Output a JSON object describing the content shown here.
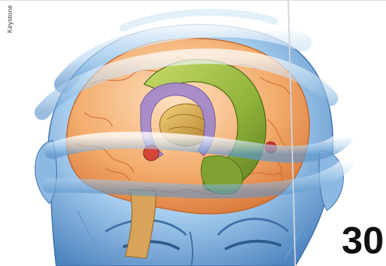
{
  "credit": "Keystone",
  "page_number": "30",
  "colors": {
    "background": "#ffffff",
    "skin_blue": "#9cc4e8",
    "cortex_orange": "#f4b075",
    "limbic_green": "#8fb23a",
    "thalamus_gold": "#d9a94a",
    "fornix_purple": "#a58acb",
    "amygdala_red": "#d6453a",
    "number": "#111111"
  }
}
